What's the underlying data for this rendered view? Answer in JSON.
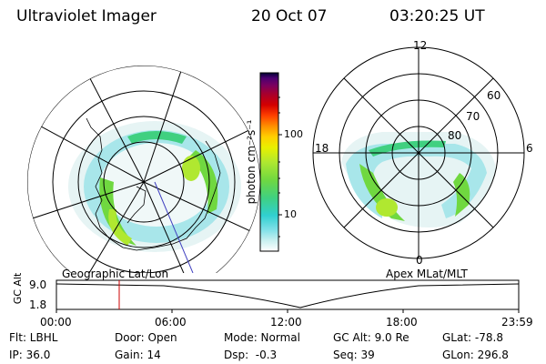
{
  "header": {
    "instrument": "Ultraviolet Imager",
    "date": "20 Oct 07",
    "time": "03:20:25 UT"
  },
  "left_panel": {
    "label": "Geographic Lat/Lon"
  },
  "right_panel": {
    "label": "Apex MLat/MLT",
    "mlt_labels": {
      "top": "12",
      "left": "18",
      "right": "6",
      "bottom": "0"
    },
    "lat_labels": [
      "60",
      "70",
      "80"
    ]
  },
  "colorbar": {
    "unit_label": "photon cm⁻²s⁻¹",
    "ticks": [
      "100",
      "10"
    ],
    "scale": "log",
    "colors": [
      "#000033",
      "#1a0050",
      "#4b0070",
      "#7a0060",
      "#a8002c",
      "#d40000",
      "#ff4000",
      "#ff9000",
      "#ffd000",
      "#e8f000",
      "#b0e830",
      "#70d840",
      "#40d080",
      "#30d0d0",
      "#80e0e8",
      "#c8f0f0",
      "#ffffff"
    ]
  },
  "altitude_plot": {
    "ylabel": "GC Alt",
    "y_ticks": [
      "9.0",
      "1.8"
    ],
    "x_ticks": [
      "00:00",
      "06:00",
      "12:00",
      "18:00",
      "23:59"
    ],
    "marker_time": "03:20",
    "marker_color": "#cc0000"
  },
  "status": {
    "filter": "Flt: LBHL",
    "door": "Door: Open",
    "mode": "Mode: Normal",
    "gc_alt": "GC Alt: 9.0 Re",
    "glat": "GLat: -78.8",
    "ip": "IP: 36.0",
    "gain": "Gain: 14",
    "dsp": "Dsp:  -0.3",
    "seq": "Seq: 39",
    "glon": "GLon: 296.8"
  }
}
